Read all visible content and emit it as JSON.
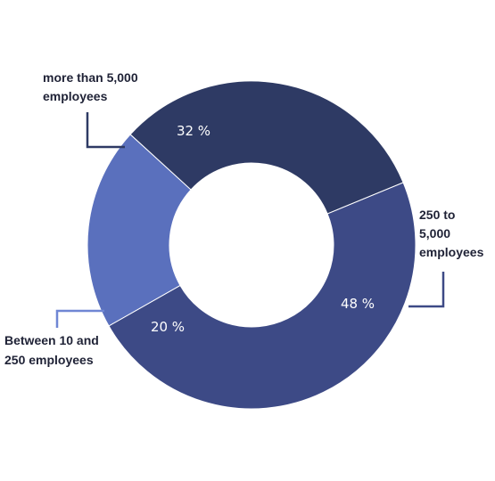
{
  "chart_data": {
    "type": "pie",
    "style": "donut",
    "title": "",
    "slices": [
      {
        "label_lines": [
          "250 to",
          "5,000",
          "employees"
        ],
        "value": 48,
        "value_label": "48 %",
        "color": "#3d4a86",
        "leader_color": "#3d4a86"
      },
      {
        "label_lines": [
          "Between 10 and",
          "250 employees"
        ],
        "value": 20,
        "value_label": "20 %",
        "color": "#5a70bd",
        "leader_color": "#6f86d4"
      },
      {
        "label_lines": [
          "more than 5,000",
          "employees"
        ],
        "value": 32,
        "value_label": "32 %",
        "color": "#2e3a64",
        "leader_color": "#2e3a64"
      }
    ]
  }
}
